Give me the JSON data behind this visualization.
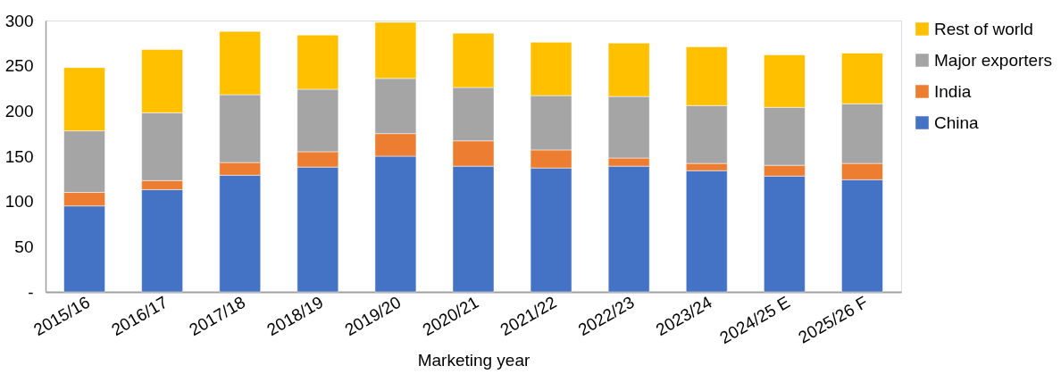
{
  "chart_data": {
    "type": "bar",
    "stacked": true,
    "xlabel": "Marketing year",
    "categories": [
      "2015/16",
      "2016/17",
      "2017/18",
      "2018/19",
      "2019/20",
      "2020/21",
      "2021/22",
      "2022/23",
      "2023/24",
      "2024/25 E",
      "2025/26 F"
    ],
    "series": [
      {
        "name": "China",
        "color": "#4472c4",
        "values": [
          95,
          113,
          129,
          138,
          150,
          139,
          137,
          139,
          134,
          128,
          124
        ]
      },
      {
        "name": "India",
        "color": "#ed7d31",
        "values": [
          15,
          10,
          14,
          17,
          25,
          28,
          20,
          9,
          8,
          12,
          18
        ]
      },
      {
        "name": "Major exporters",
        "color": "#a5a5a5",
        "values": [
          68,
          75,
          75,
          69,
          61,
          59,
          60,
          68,
          64,
          64,
          66
        ]
      },
      {
        "name": "Rest of world",
        "color": "#ffc000",
        "values": [
          70,
          70,
          70,
          60,
          62,
          60,
          59,
          59,
          65,
          58,
          56
        ]
      }
    ],
    "ylim": [
      0,
      300
    ],
    "yticks": [
      {
        "value": 0,
        "label": "-"
      },
      50,
      100,
      150,
      200,
      250,
      300
    ],
    "grid": false,
    "legend": "right"
  }
}
